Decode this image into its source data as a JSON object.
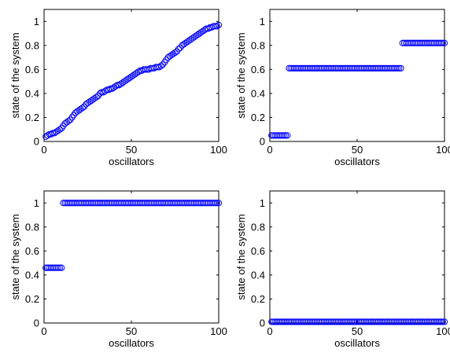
{
  "figure": {
    "background": "#ffffff",
    "marker_color": "#0000ff"
  },
  "chart_data": [
    {
      "type": "scatter",
      "marker": "circle",
      "xlabel": "oscillators",
      "ylabel": "state of the system",
      "xlim": [
        0,
        100
      ],
      "ylim": [
        0,
        1.1
      ],
      "xticks": [
        0,
        50,
        100
      ],
      "xtick_labels": [
        "0",
        "50",
        "100"
      ],
      "yticks": [
        0,
        0.2,
        0.4,
        0.6,
        0.8,
        1
      ],
      "ytick_labels": [
        "0",
        "0.2",
        "0.4",
        "0.6",
        "0.8",
        "1"
      ],
      "grid": false,
      "x": [
        1,
        2,
        3,
        4,
        5,
        6,
        7,
        8,
        9,
        10,
        11,
        12,
        13,
        14,
        15,
        16,
        17,
        18,
        19,
        20,
        21,
        22,
        23,
        24,
        25,
        26,
        27,
        28,
        29,
        30,
        31,
        32,
        33,
        34,
        35,
        36,
        37,
        38,
        39,
        40,
        41,
        42,
        43,
        44,
        45,
        46,
        47,
        48,
        49,
        50,
        51,
        52,
        53,
        54,
        55,
        56,
        57,
        58,
        59,
        60,
        61,
        62,
        63,
        64,
        65,
        66,
        67,
        68,
        69,
        70,
        71,
        72,
        73,
        74,
        75,
        76,
        77,
        78,
        79,
        80,
        81,
        82,
        83,
        84,
        85,
        86,
        87,
        88,
        89,
        90,
        91,
        92,
        93,
        94,
        95,
        96,
        97,
        98,
        99,
        100
      ],
      "y": [
        0.04,
        0.05,
        0.06,
        0.06,
        0.07,
        0.07,
        0.08,
        0.09,
        0.1,
        0.11,
        0.13,
        0.15,
        0.16,
        0.17,
        0.18,
        0.2,
        0.22,
        0.24,
        0.25,
        0.26,
        0.27,
        0.28,
        0.29,
        0.31,
        0.32,
        0.33,
        0.34,
        0.35,
        0.36,
        0.37,
        0.38,
        0.4,
        0.41,
        0.41,
        0.42,
        0.43,
        0.43,
        0.44,
        0.44,
        0.45,
        0.46,
        0.47,
        0.47,
        0.48,
        0.49,
        0.5,
        0.51,
        0.52,
        0.53,
        0.54,
        0.55,
        0.56,
        0.57,
        0.58,
        0.59,
        0.59,
        0.6,
        0.6,
        0.6,
        0.6,
        0.61,
        0.61,
        0.61,
        0.62,
        0.62,
        0.62,
        0.63,
        0.64,
        0.66,
        0.68,
        0.7,
        0.71,
        0.72,
        0.73,
        0.74,
        0.75,
        0.77,
        0.78,
        0.8,
        0.81,
        0.82,
        0.83,
        0.84,
        0.85,
        0.86,
        0.87,
        0.88,
        0.89,
        0.9,
        0.91,
        0.92,
        0.93,
        0.94,
        0.94,
        0.95,
        0.95,
        0.96,
        0.96,
        0.96,
        0.97
      ]
    },
    {
      "type": "scatter",
      "marker": "circle",
      "xlabel": "oscillators",
      "ylabel": "state of the system",
      "xlim": [
        0,
        100
      ],
      "ylim": [
        0,
        1.1
      ],
      "xticks": [
        0,
        50,
        100
      ],
      "xtick_labels": [
        "0",
        "50",
        "100"
      ],
      "yticks": [
        0,
        0.2,
        0.4,
        0.6,
        0.8,
        1
      ],
      "ytick_labels": [
        "0",
        "0.2",
        "0.4",
        "0.6",
        "0.8",
        "1"
      ],
      "grid": false,
      "segments": [
        {
          "x_from": 1,
          "x_to": 10,
          "y": 0.05
        },
        {
          "x_from": 11,
          "x_to": 75,
          "y": 0.61
        },
        {
          "x_from": 76,
          "x_to": 100,
          "y": 0.82
        }
      ]
    },
    {
      "type": "scatter",
      "marker": "circle",
      "xlabel": "oscillators",
      "ylabel": "state of the system",
      "xlim": [
        0,
        100
      ],
      "ylim": [
        0,
        1.1
      ],
      "xticks": [
        0,
        50,
        100
      ],
      "xtick_labels": [
        "0",
        "50",
        "100"
      ],
      "yticks": [
        0,
        0.2,
        0.4,
        0.6,
        0.8,
        1
      ],
      "ytick_labels": [
        "0",
        "0.2",
        "0.4",
        "0.6",
        "0.8",
        "1"
      ],
      "grid": false,
      "segments": [
        {
          "x_from": 1,
          "x_to": 10,
          "y": 0.46
        },
        {
          "x_from": 11,
          "x_to": 100,
          "y": 1.0
        }
      ]
    },
    {
      "type": "scatter",
      "marker": "circle",
      "xlabel": "oscillators",
      "ylabel": "state of the system",
      "xlim": [
        0,
        100
      ],
      "ylim": [
        0,
        1.1
      ],
      "xticks": [
        0,
        50,
        100
      ],
      "xtick_labels": [
        "0",
        "50",
        "100"
      ],
      "yticks": [
        0,
        0.2,
        0.4,
        0.6,
        0.8,
        1
      ],
      "ytick_labels": [
        "0",
        "0.2",
        "0.4",
        "0.6",
        "0.8",
        "1"
      ],
      "grid": false,
      "segments": [
        {
          "x_from": 1,
          "x_to": 100,
          "y": 0.01
        }
      ]
    }
  ]
}
